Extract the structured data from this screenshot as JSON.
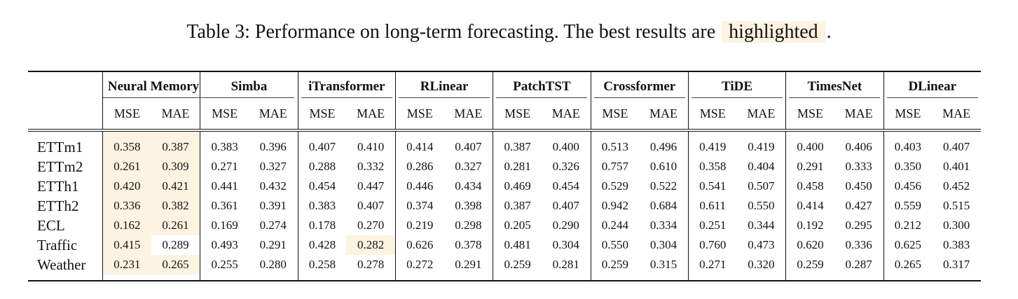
{
  "caption": {
    "prefix": "Table 3:",
    "text": " Performance on long-term forecasting. The best results are ",
    "highlight_word": "highlighted",
    "suffix": "."
  },
  "colors": {
    "highlight": "#fdf3e1",
    "rule": "#111111"
  },
  "models": [
    "Neural Memory",
    "Simba",
    "iTransformer",
    "RLinear",
    "PatchTST",
    "Crossformer",
    "TiDE",
    "TimesNet",
    "DLinear"
  ],
  "metrics": [
    "MSE",
    "MAE"
  ],
  "rows": [
    {
      "dataset": "ETTm1",
      "values": [
        "0.358",
        "0.387",
        "0.383",
        "0.396",
        "0.407",
        "0.410",
        "0.414",
        "0.407",
        "0.387",
        "0.400",
        "0.513",
        "0.496",
        "0.419",
        "0.419",
        "0.400",
        "0.406",
        "0.403",
        "0.407"
      ],
      "highlight": [
        0,
        1
      ]
    },
    {
      "dataset": "ETTm2",
      "values": [
        "0.261",
        "0.309",
        "0.271",
        "0.327",
        "0.288",
        "0.332",
        "0.286",
        "0.327",
        "0.281",
        "0.326",
        "0.757",
        "0.610",
        "0.358",
        "0.404",
        "0.291",
        "0.333",
        "0.350",
        "0.401"
      ],
      "highlight": [
        0,
        1
      ]
    },
    {
      "dataset": "ETTh1",
      "values": [
        "0.420",
        "0.421",
        "0.441",
        "0.432",
        "0.454",
        "0.447",
        "0.446",
        "0.434",
        "0.469",
        "0.454",
        "0.529",
        "0.522",
        "0.541",
        "0.507",
        "0.458",
        "0.450",
        "0.456",
        "0.452"
      ],
      "highlight": [
        0,
        1
      ]
    },
    {
      "dataset": "ETTh2",
      "values": [
        "0.336",
        "0.382",
        "0.361",
        "0.391",
        "0.383",
        "0.407",
        "0.374",
        "0.398",
        "0.387",
        "0.407",
        "0.942",
        "0.684",
        "0.611",
        "0.550",
        "0.414",
        "0.427",
        "0.559",
        "0.515"
      ],
      "highlight": [
        0,
        1
      ]
    },
    {
      "dataset": "ECL",
      "values": [
        "0.162",
        "0.261",
        "0.169",
        "0.274",
        "0.178",
        "0.270",
        "0.219",
        "0.298",
        "0.205",
        "0.290",
        "0.244",
        "0.334",
        "0.251",
        "0.344",
        "0.192",
        "0.295",
        "0.212",
        "0.300"
      ],
      "highlight": [
        0,
        1
      ]
    },
    {
      "dataset": "Traffic",
      "values": [
        "0.415",
        "0.289",
        "0.493",
        "0.291",
        "0.428",
        "0.282",
        "0.626",
        "0.378",
        "0.481",
        "0.304",
        "0.550",
        "0.304",
        "0.760",
        "0.473",
        "0.620",
        "0.336",
        "0.625",
        "0.383"
      ],
      "highlight": [
        0,
        5
      ]
    },
    {
      "dataset": "Weather",
      "values": [
        "0.231",
        "0.265",
        "0.255",
        "0.280",
        "0.258",
        "0.278",
        "0.272",
        "0.291",
        "0.259",
        "0.281",
        "0.259",
        "0.315",
        "0.271",
        "0.320",
        "0.259",
        "0.287",
        "0.265",
        "0.317"
      ],
      "highlight": [
        0,
        1
      ]
    }
  ]
}
